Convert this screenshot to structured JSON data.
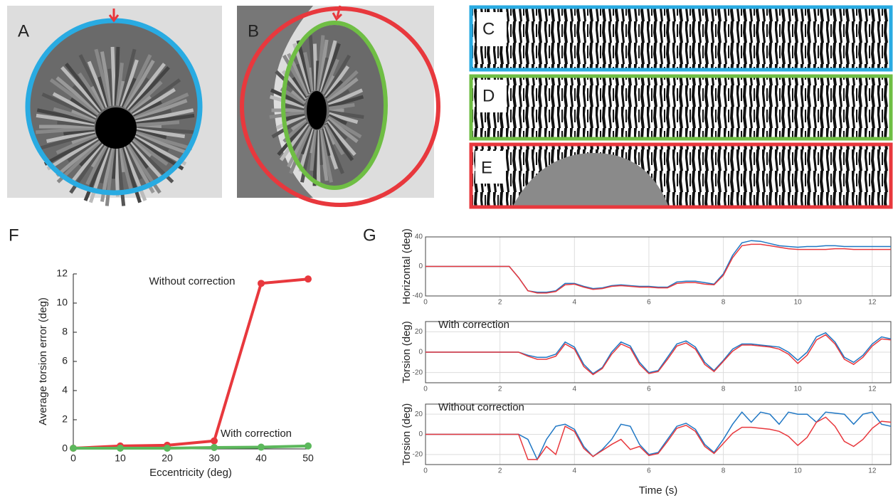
{
  "figure": {
    "panel_labels": [
      "A",
      "B",
      "C",
      "D",
      "E",
      "F",
      "G"
    ]
  },
  "chart_data": [
    {
      "type": "line",
      "xlabel": "Eccentricity (deg)",
      "ylabel": "Average torsion error (deg)",
      "x": [
        0,
        10,
        20,
        30,
        40,
        50
      ],
      "xlim": [
        0,
        50
      ],
      "xticks": [
        0,
        10,
        20,
        30,
        40,
        50
      ],
      "ylim": [
        0,
        12
      ],
      "yticks": [
        0,
        2,
        4,
        6,
        8,
        10,
        12
      ],
      "markers": true,
      "series": [
        {
          "name": "Without correction",
          "color": "#e8383d",
          "values": [
            0.05,
            0.2,
            0.25,
            0.55,
            11.35,
            11.65
          ]
        },
        {
          "name": "With correction",
          "color": "#5cb85c",
          "values": [
            0.05,
            0.05,
            0.05,
            0.1,
            0.12,
            0.2
          ]
        }
      ]
    },
    {
      "type": "line",
      "ylabel": "Horizontal (deg)",
      "x": [
        0,
        0.25,
        0.5,
        0.75,
        1,
        1.25,
        1.5,
        1.75,
        2,
        2.25,
        2.5,
        2.75,
        3,
        3.25,
        3.5,
        3.75,
        4,
        4.25,
        4.5,
        4.75,
        5,
        5.25,
        5.5,
        5.75,
        6,
        6.25,
        6.5,
        6.75,
        7,
        7.25,
        7.5,
        7.75,
        8,
        8.25,
        8.5,
        8.75,
        9,
        9.25,
        9.5,
        9.75,
        10,
        10.25,
        10.5,
        10.75,
        11,
        11.25,
        11.5,
        11.75,
        12,
        12.25,
        12.5
      ],
      "xlim": [
        0,
        12.5
      ],
      "xticks": [
        0,
        2,
        4,
        6,
        8,
        10,
        12
      ],
      "ylim": [
        -40,
        40
      ],
      "yticks": [
        -40,
        0,
        40
      ],
      "grid": true,
      "series": [
        {
          "color": "#1f77c4",
          "values": [
            0,
            0,
            0,
            0,
            0,
            0,
            0,
            0,
            0,
            0,
            -15,
            -33,
            -35,
            -35,
            -33,
            -23,
            -23,
            -27,
            -30,
            -29,
            -26,
            -25,
            -26,
            -27,
            -27,
            -28,
            -28,
            -21,
            -20,
            -20,
            -22,
            -24,
            -10,
            15,
            32,
            35,
            34,
            31,
            28,
            27,
            26,
            27,
            27,
            28,
            28,
            27,
            27,
            27,
            27,
            27,
            27
          ]
        },
        {
          "color": "#e8383d",
          "values": [
            0,
            0,
            0,
            0,
            0,
            0,
            0,
            0,
            0,
            0,
            -15,
            -33,
            -36,
            -36,
            -34,
            -25,
            -24,
            -28,
            -31,
            -30,
            -27,
            -26,
            -27,
            -28,
            -28,
            -29,
            -29,
            -23,
            -22,
            -22,
            -24,
            -25,
            -12,
            12,
            28,
            30,
            30,
            28,
            26,
            24,
            23,
            23,
            23,
            23,
            24,
            24,
            23,
            23,
            23,
            23,
            23
          ]
        }
      ]
    },
    {
      "type": "line",
      "ylabel": "Torsion (deg)",
      "annotation": "With correction",
      "x": [
        0,
        0.25,
        0.5,
        0.75,
        1,
        1.25,
        1.5,
        1.75,
        2,
        2.25,
        2.5,
        2.75,
        3,
        3.25,
        3.5,
        3.75,
        4,
        4.25,
        4.5,
        4.75,
        5,
        5.25,
        5.5,
        5.75,
        6,
        6.25,
        6.5,
        6.75,
        7,
        7.25,
        7.5,
        7.75,
        8,
        8.25,
        8.5,
        8.75,
        9,
        9.25,
        9.5,
        9.75,
        10,
        10.25,
        10.5,
        10.75,
        11,
        11.25,
        11.5,
        11.75,
        12,
        12.25,
        12.5
      ],
      "xlim": [
        0,
        12.5
      ],
      "xticks": [
        0,
        2,
        4,
        6,
        8,
        10,
        12
      ],
      "ylim": [
        -30,
        30
      ],
      "yticks": [
        -20,
        0,
        20
      ],
      "grid": true,
      "series": [
        {
          "color": "#1f77c4",
          "values": [
            0,
            0,
            0,
            0,
            0,
            0,
            0,
            0,
            0,
            0,
            0,
            -3,
            -5,
            -5,
            -2,
            10,
            5,
            -12,
            -21,
            -15,
            0,
            10,
            6,
            -10,
            -20,
            -18,
            -5,
            8,
            11,
            5,
            -10,
            -18,
            -8,
            3,
            8,
            8,
            7,
            6,
            5,
            0,
            -8,
            0,
            15,
            19,
            10,
            -5,
            -10,
            -3,
            8,
            15,
            13
          ]
        },
        {
          "color": "#e8383d",
          "values": [
            0,
            0,
            0,
            0,
            0,
            0,
            0,
            0,
            0,
            0,
            0,
            -4,
            -7,
            -7,
            -4,
            8,
            3,
            -14,
            -22,
            -16,
            -2,
            8,
            4,
            -12,
            -21,
            -19,
            -7,
            6,
            9,
            3,
            -12,
            -19,
            -9,
            1,
            7,
            7,
            6,
            5,
            3,
            -2,
            -11,
            -3,
            12,
            17,
            8,
            -7,
            -12,
            -5,
            6,
            13,
            12
          ]
        }
      ]
    },
    {
      "type": "line",
      "ylabel": "Torsion (deg)",
      "annotation": "Without correction",
      "xlabel": "Time (s)",
      "x": [
        0,
        0.25,
        0.5,
        0.75,
        1,
        1.25,
        1.5,
        1.75,
        2,
        2.25,
        2.5,
        2.75,
        3,
        3.25,
        3.5,
        3.75,
        4,
        4.25,
        4.5,
        4.75,
        5,
        5.25,
        5.5,
        5.75,
        6,
        6.25,
        6.5,
        6.75,
        7,
        7.25,
        7.5,
        7.75,
        8,
        8.25,
        8.5,
        8.75,
        9,
        9.25,
        9.5,
        9.75,
        10,
        10.25,
        10.5,
        10.75,
        11,
        11.25,
        11.5,
        11.75,
        12,
        12.25,
        12.5
      ],
      "xlim": [
        0,
        12.5
      ],
      "xticks": [
        0,
        2,
        4,
        6,
        8,
        10,
        12
      ],
      "ylim": [
        -30,
        30
      ],
      "yticks": [
        -20,
        0,
        20
      ],
      "grid": true,
      "series": [
        {
          "color": "#1f77c4",
          "values": [
            0,
            0,
            0,
            0,
            0,
            0,
            0,
            0,
            0,
            0,
            0,
            -5,
            -25,
            -5,
            8,
            10,
            5,
            -12,
            -22,
            -15,
            -5,
            10,
            8,
            -10,
            -20,
            -18,
            -5,
            8,
            11,
            5,
            -10,
            -18,
            -5,
            10,
            22,
            12,
            22,
            20,
            10,
            22,
            20,
            20,
            12,
            22,
            21,
            20,
            10,
            20,
            22,
            10,
            8
          ]
        },
        {
          "color": "#e8383d",
          "values": [
            0,
            0,
            0,
            0,
            0,
            0,
            0,
            0,
            0,
            0,
            0,
            -25,
            -25,
            -12,
            -20,
            8,
            3,
            -14,
            -22,
            -16,
            -10,
            -5,
            -15,
            -12,
            -21,
            -19,
            -7,
            6,
            9,
            3,
            -12,
            -19,
            -9,
            1,
            7,
            7,
            6,
            5,
            3,
            -2,
            -11,
            -3,
            12,
            17,
            8,
            -7,
            -12,
            -5,
            6,
            13,
            12
          ]
        }
      ]
    }
  ]
}
